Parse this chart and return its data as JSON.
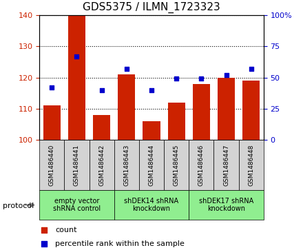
{
  "title": "GDS5375 / ILMN_1723323",
  "samples": [
    "GSM1486440",
    "GSM1486441",
    "GSM1486442",
    "GSM1486443",
    "GSM1486444",
    "GSM1486445",
    "GSM1486446",
    "GSM1486447",
    "GSM1486448"
  ],
  "count_values": [
    111,
    140,
    108,
    121,
    106,
    112,
    118,
    120,
    119
  ],
  "percentile_values": [
    42,
    67,
    40,
    57,
    40,
    49,
    49,
    52,
    57
  ],
  "ylim_left": [
    100,
    140
  ],
  "ylim_right": [
    0,
    100
  ],
  "yticks_left": [
    100,
    110,
    120,
    130,
    140
  ],
  "yticks_right": [
    0,
    25,
    50,
    75,
    100
  ],
  "ytick_labels_right": [
    "0",
    "25",
    "50",
    "75",
    "100%"
  ],
  "bar_color": "#cc2200",
  "dot_color": "#0000cc",
  "group_ranges": [
    [
      0,
      3
    ],
    [
      3,
      6
    ],
    [
      6,
      9
    ]
  ],
  "group_labels": [
    "empty vector\nshRNA control",
    "shDEK14 shRNA\nknockdown",
    "shDEK17 shRNA\nknockdown"
  ],
  "group_color": "#90ee90",
  "protocol_label": "protocol",
  "background_color": "#ffffff",
  "plot_bg_color": "#ffffff",
  "tick_bg_color": "#d3d3d3",
  "legend_count_label": "count",
  "legend_pct_label": "percentile rank within the sample"
}
